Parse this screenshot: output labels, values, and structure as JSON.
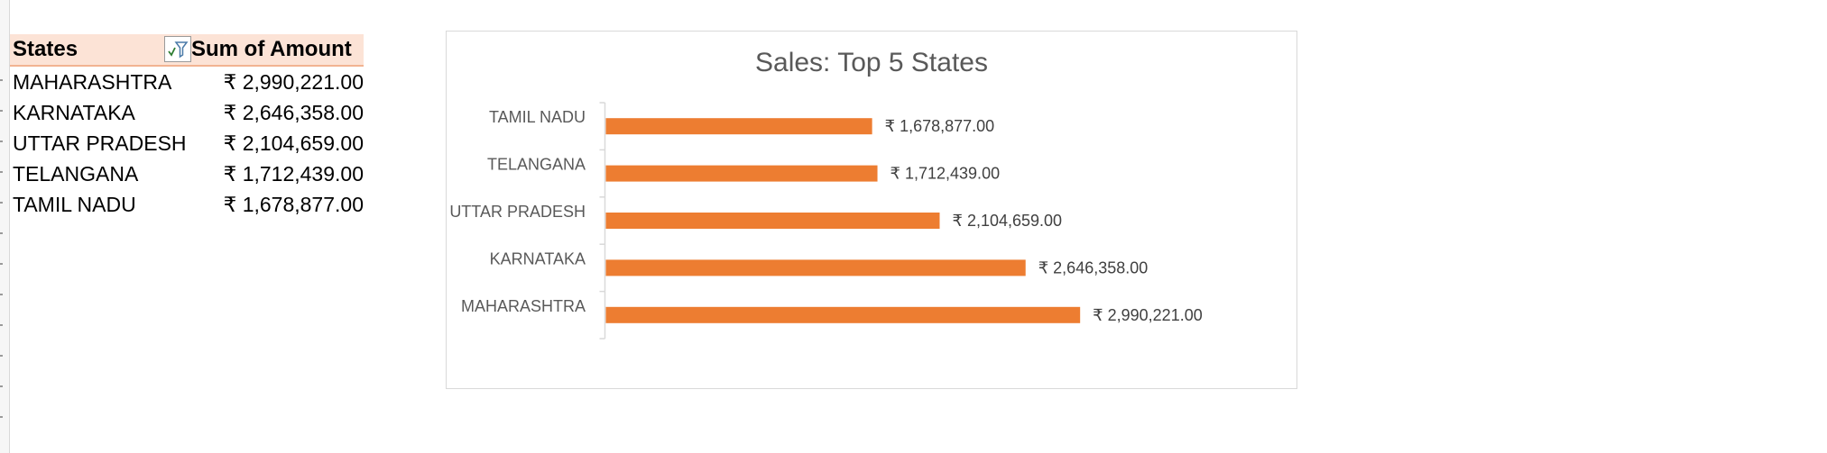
{
  "pivot_table": {
    "headers": {
      "states": "States",
      "amount": "Sum of Amount"
    },
    "filter_icon": "filter-icon",
    "rows": [
      {
        "state": "MAHARASHTRA",
        "amount": "₹ 2,990,221.00"
      },
      {
        "state": "KARNATAKA",
        "amount": "₹ 2,646,358.00"
      },
      {
        "state": "UTTAR PRADESH",
        "amount": "₹ 2,104,659.00"
      },
      {
        "state": "TELANGANA",
        "amount": "₹ 1,712,439.00"
      },
      {
        "state": "TAMIL NADU",
        "amount": "₹ 1,678,877.00"
      }
    ]
  },
  "chart_data": {
    "type": "bar",
    "orientation": "horizontal",
    "title": "Sales: Top 5 States",
    "categories": [
      "TAMIL NADU",
      "TELANGANA",
      "UTTAR PRADESH",
      "KARNATAKA",
      "MAHARASHTRA"
    ],
    "values": [
      1678877,
      1712439,
      2104659,
      2646358,
      2990221
    ],
    "value_labels": [
      "₹ 1,678,877.00",
      "₹ 1,712,439.00",
      "₹ 2,104,659.00",
      "₹ 2,646,358.00",
      "₹ 2,990,221.00"
    ],
    "xlabel": "",
    "ylabel": "",
    "xlim": [
      0,
      3300000
    ],
    "grid": false,
    "legend": "none",
    "bar_color": "#ed7d31"
  },
  "colors": {
    "header_fill": "#fce3d6",
    "header_border": "#f2b391",
    "chart_text": "#595959"
  }
}
